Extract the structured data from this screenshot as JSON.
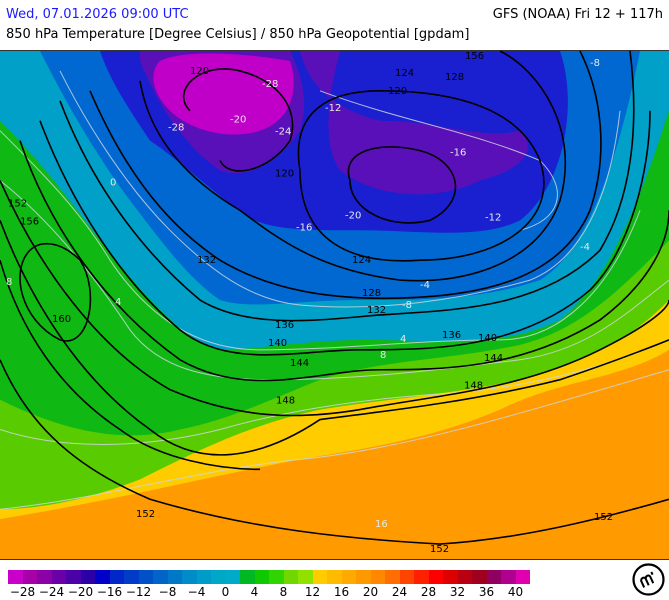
{
  "header": {
    "datetime": "Wed, 07.01.2026 09:00 UTC",
    "model_run": "GFS (NOAA) Fri 12 + 117h",
    "title": "850 hPa Temperature [Degree Celsius] / 850 hPa Geopotential [gpdam]"
  },
  "colors": {
    "datetime_text": "#1a1aff",
    "contour_geopotential": "#000000",
    "contour_temperature": "#d8d8d8"
  },
  "legend": {
    "unit_range": [
      -30,
      42
    ],
    "colors": [
      "#c800c8",
      "#a800a8",
      "#8c00a8",
      "#6c00a8",
      "#4c00a8",
      "#2c00a8",
      "#0000c8",
      "#0028c8",
      "#003cc8",
      "#0050c8",
      "#0064c8",
      "#0078c8",
      "#008cc8",
      "#009cc8",
      "#00a8c8",
      "#00aac8",
      "#00b822",
      "#10c800",
      "#30d400",
      "#70d800",
      "#90e000",
      "#ffcc00",
      "#ffbb00",
      "#ffaa00",
      "#ff9900",
      "#ff8800",
      "#ff6e00",
      "#ff4400",
      "#ff2000",
      "#ff0000",
      "#dd0000",
      "#b80010",
      "#a00020",
      "#900060",
      "#b00090",
      "#e000b0",
      "#ff20ff",
      "#f050f0"
    ],
    "tick_labels": [
      "−28",
      "−24",
      "−20",
      "−16",
      "−12",
      "−8",
      "−4",
      "0",
      "4",
      "8",
      "12",
      "16",
      "20",
      "24",
      "28",
      "32",
      "36",
      "40"
    ]
  },
  "map": {
    "geopotential_labels": [
      "120",
      "120",
      "120",
      "124",
      "124",
      "128",
      "128",
      "132",
      "132",
      "136",
      "136",
      "140",
      "140",
      "144",
      "144",
      "148",
      "148",
      "152",
      "152",
      "152",
      "152",
      "156",
      "156",
      "160"
    ],
    "temperature_labels": [
      "-28",
      "-28",
      "-24",
      "-20",
      "-20",
      "-16",
      "-16",
      "-12",
      "-12",
      "-8",
      "-8",
      "-4",
      "-4",
      "0",
      "4",
      "4",
      "8",
      "8",
      "16"
    ]
  },
  "logo": "meteo-logo-icon"
}
